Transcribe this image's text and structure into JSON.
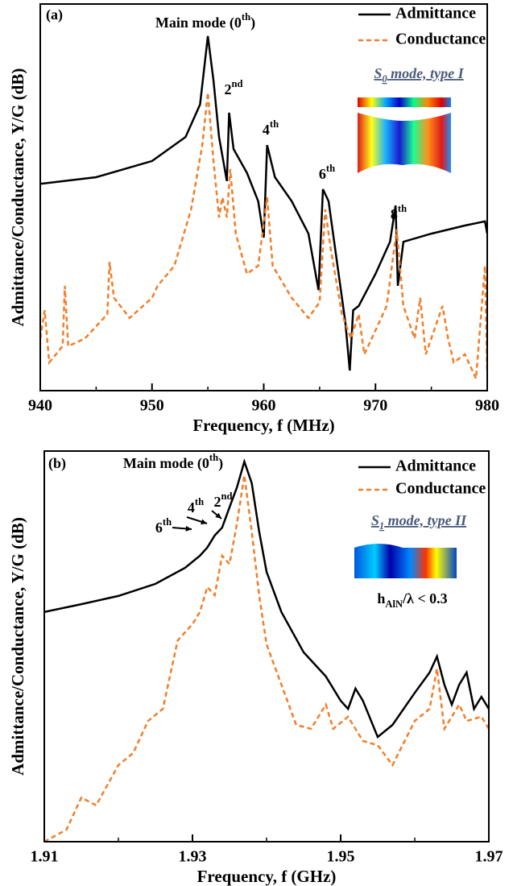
{
  "chart_data": [
    {
      "type": "line",
      "label": "(a)",
      "xlabel": "Frequency, f (MHz)",
      "ylabel": "Admittance/Conductance, Y/G (dB)",
      "xlim": [
        940,
        980
      ],
      "xticks": [
        940,
        950,
        960,
        970,
        980
      ],
      "xminor": [
        945,
        955,
        965,
        975
      ],
      "ylim": [
        0,
        100
      ],
      "series": [
        {
          "name": "Admittance",
          "color": "#000000",
          "dash": false,
          "x": [
            940,
            945,
            950,
            953,
            954.3,
            955,
            955.5,
            956,
            956.7,
            956.9,
            957.3,
            958.5,
            959.5,
            960,
            960.3,
            961,
            962.5,
            964,
            964.9,
            965.3,
            965.8,
            966.5,
            967.3,
            967.7,
            968,
            968.5,
            970,
            971.3,
            971.8,
            972,
            972.5,
            975,
            978,
            979.8,
            980
          ],
          "values": [
            53.5,
            55.2,
            59.4,
            65.6,
            74,
            91.7,
            80.2,
            65.6,
            54.2,
            71.9,
            62.5,
            56.3,
            49,
            39.6,
            63.5,
            55.2,
            49,
            40.6,
            26,
            52.1,
            49,
            34.4,
            17.7,
            5.2,
            20.8,
            21.9,
            30.2,
            38.5,
            47.9,
            27.1,
            38.5,
            40.6,
            42.7,
            43.8,
            40.6
          ]
        },
        {
          "name": "Conductance",
          "color": "#f07f2a",
          "dash": true,
          "x": [
            940,
            940.4,
            940.8,
            942,
            942.2,
            942.5,
            944,
            946,
            946.2,
            946.6,
            948,
            950,
            950.5,
            952,
            953.5,
            954.5,
            955,
            955.5,
            956,
            956.3,
            956.7,
            957,
            957.5,
            958.5,
            959.5,
            960.3,
            960.8,
            962.5,
            964,
            965,
            965.5,
            966,
            967,
            967.8,
            968.5,
            969,
            970,
            971,
            971.9,
            972.5,
            973.5,
            974,
            974.5,
            976,
            976.5,
            977,
            978,
            979,
            979.8,
            980
          ],
          "values": [
            13.5,
            20.8,
            7.3,
            11.5,
            27.1,
            11.5,
            13.5,
            19.8,
            33.3,
            24,
            18.8,
            24,
            27.1,
            32.3,
            46.9,
            63.5,
            77.1,
            59.4,
            44.8,
            50,
            44.8,
            57.3,
            40.6,
            30.2,
            32.3,
            50,
            32.3,
            24,
            18.8,
            22.9,
            46.9,
            36.5,
            19.8,
            13.5,
            19.8,
            9.4,
            15.6,
            21.9,
            41.7,
            21.9,
            13.5,
            24,
            9.4,
            21.9,
            13.5,
            7.3,
            9.4,
            3.1,
            32.3,
            5.2
          ]
        }
      ],
      "annotations": [
        {
          "text": "Main mode (0",
          "sup": "th",
          "after": ")"
        },
        {
          "text": "2",
          "sup": "nd"
        },
        {
          "text": "4",
          "sup": "th"
        },
        {
          "text": "6",
          "sup": "th"
        },
        {
          "text": "8",
          "sup": "th"
        }
      ],
      "inset_labels": [
        {
          "text": "S",
          "sub": "0",
          "after": " mode, type I"
        }
      ]
    },
    {
      "type": "line",
      "label": "(b)",
      "xlabel": "Frequency, f (GHz)",
      "ylabel": "Admittance/Conductance, Y/G (dB)",
      "xlim": [
        1.91,
        1.97
      ],
      "xticks": [
        1.91,
        1.93,
        1.95,
        1.97
      ],
      "xminor": [
        1.92,
        1.94,
        1.96
      ],
      "ylim": [
        0,
        100
      ],
      "series": [
        {
          "name": "Admittance",
          "color": "#000000",
          "dash": false,
          "x": [
            1.91,
            1.915,
            1.92,
            1.925,
            1.929,
            1.931,
            1.932,
            1.933,
            1.934,
            1.935,
            1.936,
            1.937,
            1.938,
            1.939,
            1.94,
            1.942,
            1.945,
            1.948,
            1.95,
            1.951,
            1.952,
            1.953,
            1.955,
            1.957,
            1.96,
            1.962,
            1.963,
            1.964,
            1.965,
            1.966,
            1.967,
            1.968,
            1.969,
            1.97
          ],
          "values": [
            58.8,
            60.8,
            62.9,
            66,
            70.1,
            73.2,
            75.3,
            78.4,
            80.4,
            85.6,
            90.7,
            97.3,
            91.8,
            79.4,
            69.1,
            58.8,
            48.5,
            42.3,
            36.1,
            34,
            39.2,
            36.1,
            26.8,
            29.9,
            38.1,
            43.3,
            47.4,
            40.2,
            35.1,
            40.2,
            43.3,
            34,
            37.1,
            34
          ]
        },
        {
          "name": "Conductance",
          "color": "#f07f2a",
          "dash": true,
          "x": [
            1.91,
            1.913,
            1.915,
            1.917,
            1.92,
            1.922,
            1.924,
            1.926,
            1.928,
            1.93,
            1.931,
            1.932,
            1.933,
            1.934,
            1.935,
            1.936,
            1.937,
            1.938,
            1.939,
            1.94,
            1.942,
            1.944,
            1.946,
            1.948,
            1.949,
            1.951,
            1.953,
            1.955,
            1.957,
            1.96,
            1.962,
            1.963,
            1.964,
            1.966,
            1.967,
            1.969,
            1.97
          ],
          "values": [
            0,
            3.1,
            11.3,
            9.3,
            19.6,
            22.7,
            30.9,
            34,
            51.5,
            55.7,
            58.8,
            65.2,
            63.1,
            73.2,
            71.1,
            81.4,
            93.8,
            79.4,
            63.1,
            50.5,
            40.2,
            29.9,
            28.9,
            35.1,
            28.9,
            32,
            25.8,
            24.7,
            19.6,
            30.9,
            34,
            44.3,
            28.9,
            35.1,
            30.9,
            32,
            28.9
          ]
        }
      ],
      "annotations": [
        {
          "text": "Main mode (0",
          "sup": "th",
          "after": ")"
        },
        {
          "text": "2",
          "sup": "nd"
        },
        {
          "text": "4",
          "sup": "th"
        },
        {
          "text": "6",
          "sup": "th"
        }
      ],
      "inset_labels": [
        {
          "text": "S",
          "sub": "1",
          "after": " mode, type II"
        },
        {
          "text": "h",
          "sub": "AlN",
          "after": "/λ < 0.3"
        }
      ]
    }
  ]
}
